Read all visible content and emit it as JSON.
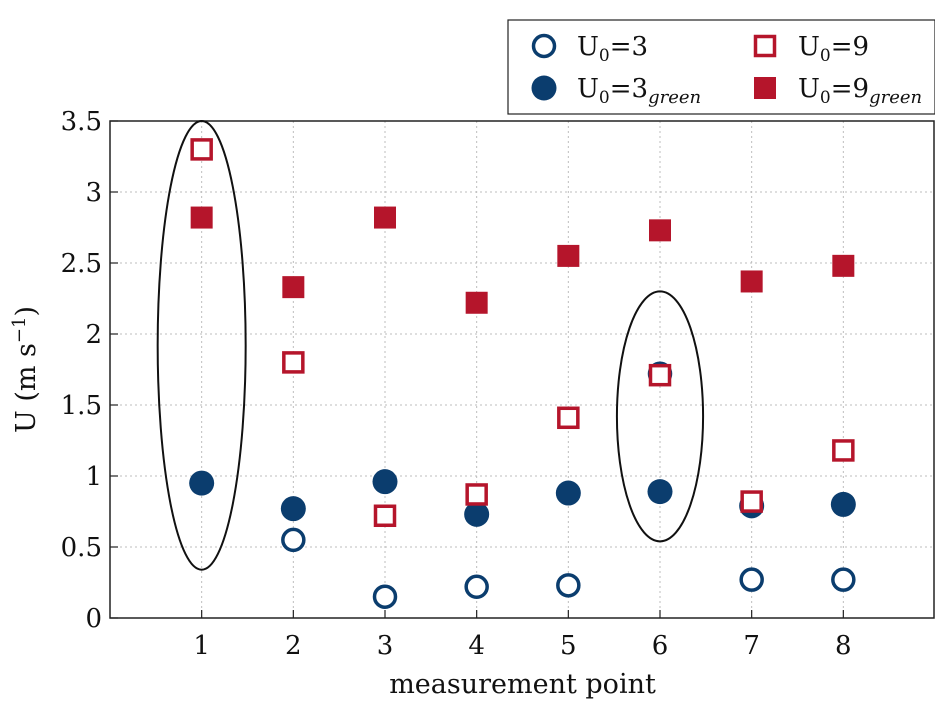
{
  "chart_data": {
    "type": "scatter",
    "xlabel": "measurement point",
    "ylabel": "U (m s",
    "ylabel_sup": "−1",
    "ylabel_end": ")",
    "xlim": [
      0,
      9
    ],
    "ylim": [
      0,
      3.5
    ],
    "xticks": [
      "1",
      "2",
      "3",
      "4",
      "5",
      "6",
      "7",
      "8"
    ],
    "yticks": [
      "0",
      "0.5",
      "1",
      "1.5",
      "2",
      "2.5",
      "3",
      "3.5"
    ],
    "grid": true,
    "legend_position": "top-right",
    "series": [
      {
        "name": "U0=3",
        "legend_main": "U",
        "legend_sub0": "0",
        "legend_rest": "=3",
        "legend_italic": "",
        "marker": "circle-open",
        "color": "#0b3d6e",
        "points": [
          [
            2,
            0.55
          ],
          [
            3,
            0.15
          ],
          [
            4,
            0.22
          ],
          [
            5,
            0.23
          ],
          [
            6,
            1.72
          ],
          [
            7,
            0.27
          ],
          [
            8,
            0.27
          ]
        ]
      },
      {
        "name": "U0=3green",
        "legend_main": "U",
        "legend_sub0": "0",
        "legend_rest": "=3",
        "legend_italic": "green",
        "marker": "circle-filled",
        "color": "#0b3d6e",
        "points": [
          [
            1,
            0.95
          ],
          [
            2,
            0.77
          ],
          [
            3,
            0.96
          ],
          [
            4,
            0.73
          ],
          [
            5,
            0.88
          ],
          [
            6,
            0.89
          ],
          [
            7,
            0.79
          ],
          [
            8,
            0.8
          ]
        ]
      },
      {
        "name": "U0=9",
        "legend_main": "U",
        "legend_sub0": "0",
        "legend_rest": "=9",
        "legend_italic": "",
        "marker": "square-open",
        "color": "#b5152b",
        "points": [
          [
            1,
            3.3
          ],
          [
            2,
            1.8
          ],
          [
            3,
            0.72
          ],
          [
            4,
            0.87
          ],
          [
            5,
            1.41
          ],
          [
            6,
            1.71
          ],
          [
            7,
            0.82
          ],
          [
            8,
            1.18
          ]
        ]
      },
      {
        "name": "U0=9green",
        "legend_main": "U",
        "legend_sub0": "0",
        "legend_rest": "=9",
        "legend_italic": "green",
        "marker": "square-filled",
        "color": "#b5152b",
        "points": [
          [
            1,
            2.82
          ],
          [
            2,
            2.33
          ],
          [
            3,
            2.82
          ],
          [
            4,
            2.22
          ],
          [
            5,
            2.55
          ],
          [
            6,
            2.73
          ],
          [
            7,
            2.37
          ],
          [
            8,
            2.48
          ]
        ]
      }
    ],
    "annotations": [
      {
        "shape": "ellipse",
        "center": [
          1,
          1.92
        ],
        "rx": 0.48,
        "ry": 1.58
      },
      {
        "shape": "ellipse",
        "center": [
          6,
          1.42
        ],
        "rx": 0.47,
        "ry": 0.88
      }
    ]
  }
}
